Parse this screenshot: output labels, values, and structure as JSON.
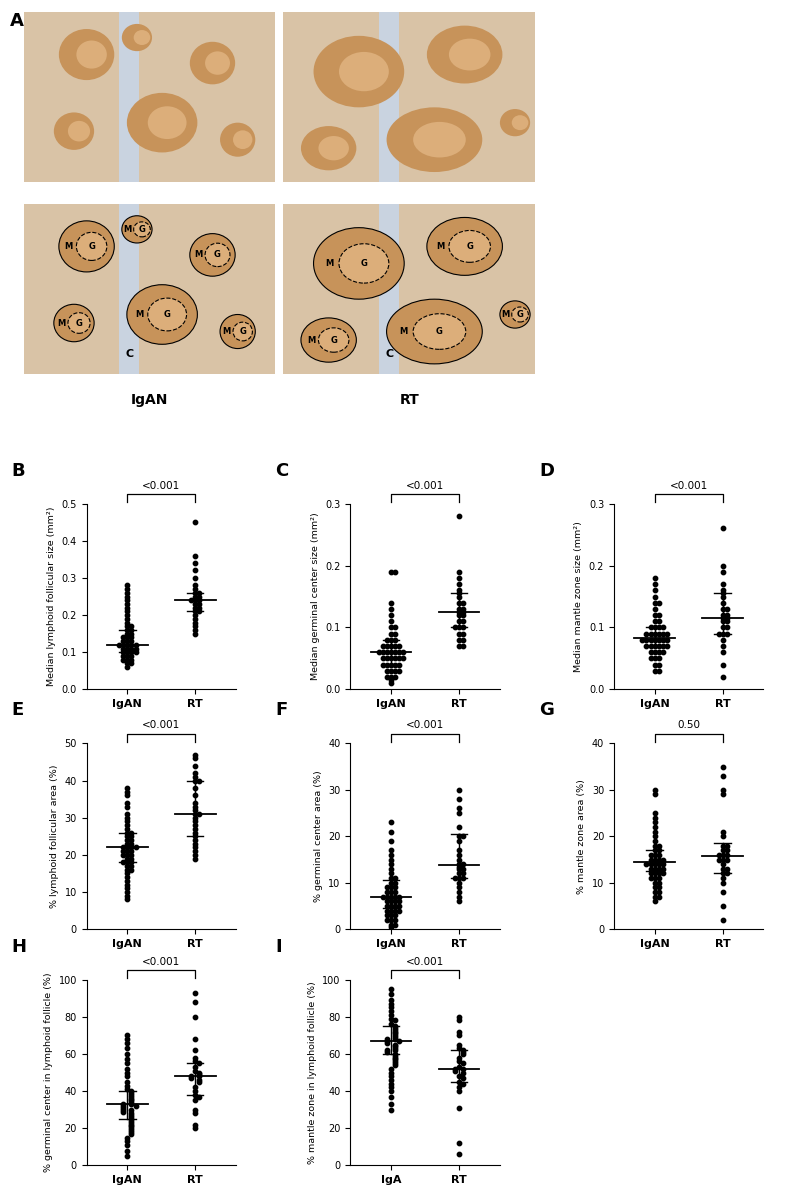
{
  "panel_A": {
    "panel_label": "A",
    "columns": [
      "IgAN",
      "RT"
    ],
    "region_labels": {
      "mantle_zone": "M",
      "germinal_center": "G",
      "capsule": "C"
    }
  },
  "chart_data": [
    {
      "type": "scatter",
      "panel_label": "B",
      "y_label": "Median lymphoid follicular size (mm²)",
      "categories": [
        "IgAN",
        "RT"
      ],
      "annotation": "<0.001",
      "values": [
        [
          0.28,
          0.27,
          0.26,
          0.25,
          0.24,
          0.23,
          0.22,
          0.21,
          0.2,
          0.19,
          0.18,
          0.17,
          0.17,
          0.16,
          0.16,
          0.15,
          0.15,
          0.14,
          0.14,
          0.14,
          0.13,
          0.13,
          0.13,
          0.12,
          0.12,
          0.12,
          0.12,
          0.12,
          0.11,
          0.11,
          0.11,
          0.11,
          0.1,
          0.1,
          0.1,
          0.1,
          0.09,
          0.09,
          0.09,
          0.08,
          0.08,
          0.08,
          0.07,
          0.07,
          0.06
        ],
        [
          0.45,
          0.36,
          0.34,
          0.32,
          0.3,
          0.28,
          0.27,
          0.26,
          0.26,
          0.25,
          0.25,
          0.24,
          0.24,
          0.24,
          0.23,
          0.23,
          0.22,
          0.22,
          0.21,
          0.21,
          0.2,
          0.19,
          0.18,
          0.17,
          0.16,
          0.15
        ]
      ],
      "median": [
        0.12,
        0.24
      ],
      "q1": [
        0.1,
        0.21
      ],
      "q3": [
        0.16,
        0.26
      ],
      "ylim": [
        0.0,
        0.5
      ],
      "yticks": [
        0.0,
        0.1,
        0.2,
        0.3,
        0.4,
        0.5
      ]
    },
    {
      "type": "scatter",
      "panel_label": "C",
      "y_label": "Median germinal center size (mm²)",
      "categories": [
        "IgAN",
        "RT"
      ],
      "annotation": "<0.001",
      "values": [
        [
          0.19,
          0.19,
          0.14,
          0.13,
          0.12,
          0.11,
          0.1,
          0.1,
          0.09,
          0.09,
          0.08,
          0.08,
          0.08,
          0.07,
          0.07,
          0.07,
          0.07,
          0.06,
          0.06,
          0.06,
          0.06,
          0.06,
          0.06,
          0.05,
          0.05,
          0.05,
          0.05,
          0.05,
          0.04,
          0.04,
          0.04,
          0.04,
          0.04,
          0.03,
          0.03,
          0.03,
          0.03,
          0.02,
          0.02,
          0.02,
          0.015,
          0.01,
          0.07,
          0.06,
          0.05
        ],
        [
          0.28,
          0.19,
          0.18,
          0.17,
          0.16,
          0.155,
          0.15,
          0.14,
          0.14,
          0.13,
          0.13,
          0.125,
          0.125,
          0.12,
          0.12,
          0.11,
          0.11,
          0.1,
          0.1,
          0.1,
          0.09,
          0.09,
          0.08,
          0.08,
          0.07,
          0.07
        ]
      ],
      "median": [
        0.06,
        0.125
      ],
      "q1": [
        0.04,
        0.1
      ],
      "q3": [
        0.08,
        0.155
      ],
      "ylim": [
        0.0,
        0.3
      ],
      "yticks": [
        0.0,
        0.1,
        0.2,
        0.3
      ]
    },
    {
      "type": "scatter",
      "panel_label": "D",
      "y_label": "Median mantle zone size (mm²)",
      "categories": [
        "IgAN",
        "RT"
      ],
      "annotation": "<0.001",
      "values": [
        [
          0.18,
          0.17,
          0.16,
          0.15,
          0.14,
          0.14,
          0.13,
          0.12,
          0.12,
          0.11,
          0.11,
          0.1,
          0.1,
          0.1,
          0.1,
          0.09,
          0.09,
          0.09,
          0.09,
          0.09,
          0.08,
          0.08,
          0.08,
          0.08,
          0.08,
          0.08,
          0.08,
          0.07,
          0.07,
          0.07,
          0.07,
          0.07,
          0.07,
          0.06,
          0.06,
          0.06,
          0.06,
          0.05,
          0.05,
          0.05,
          0.04,
          0.04,
          0.03,
          0.03,
          0.09
        ],
        [
          0.26,
          0.2,
          0.19,
          0.17,
          0.16,
          0.155,
          0.15,
          0.14,
          0.13,
          0.13,
          0.12,
          0.12,
          0.115,
          0.115,
          0.11,
          0.11,
          0.1,
          0.1,
          0.09,
          0.09,
          0.09,
          0.08,
          0.07,
          0.06,
          0.04,
          0.02
        ]
      ],
      "median": [
        0.083,
        0.115
      ],
      "q1": [
        0.07,
        0.09
      ],
      "q3": [
        0.1,
        0.155
      ],
      "ylim": [
        0.0,
        0.3
      ],
      "yticks": [
        0.0,
        0.1,
        0.2,
        0.3
      ]
    },
    {
      "type": "scatter",
      "panel_label": "E",
      "y_label": "% lymphoid follicular area (%)",
      "categories": [
        "IgAN",
        "RT"
      ],
      "annotation": "<0.001",
      "values": [
        [
          38,
          37,
          36,
          34,
          33,
          31,
          30,
          29,
          28,
          27,
          26,
          26,
          25,
          25,
          24,
          24,
          23,
          23,
          22,
          22,
          22,
          22,
          21,
          21,
          21,
          20,
          20,
          20,
          19,
          19,
          18,
          18,
          18,
          17,
          17,
          16,
          16,
          15,
          14,
          13,
          12,
          11,
          10,
          9,
          8
        ],
        [
          47,
          46,
          44,
          42,
          41,
          40,
          40,
          38,
          36,
          34,
          33,
          32,
          31,
          31,
          30,
          29,
          28,
          27,
          26,
          25,
          24,
          23,
          22,
          21,
          20,
          19
        ]
      ],
      "median": [
        22,
        31
      ],
      "q1": [
        18,
        25
      ],
      "q3": [
        26,
        40
      ],
      "ylim": [
        0,
        50
      ],
      "yticks": [
        0,
        10,
        20,
        30,
        40,
        50
      ]
    },
    {
      "type": "scatter",
      "panel_label": "F",
      "y_label": "% germinal center area (%)",
      "categories": [
        "IgAN",
        "RT"
      ],
      "annotation": "<0.001",
      "values": [
        [
          23,
          21,
          19,
          17,
          16,
          15,
          14,
          13,
          12,
          11,
          11,
          10,
          10,
          9,
          9,
          9,
          8,
          8,
          8,
          7,
          7,
          7,
          7,
          7,
          6,
          6,
          6,
          6,
          5,
          5,
          5,
          5,
          4,
          4,
          4,
          4,
          3,
          3,
          3,
          2,
          2,
          2,
          1,
          1,
          0.5
        ],
        [
          30,
          28,
          26,
          25,
          22,
          20,
          20,
          19,
          17,
          16,
          15,
          14,
          14,
          13.5,
          13,
          13,
          12,
          12,
          11,
          11,
          11,
          10,
          9,
          8,
          7,
          6
        ]
      ],
      "median": [
        7,
        13.8
      ],
      "q1": [
        4.5,
        11
      ],
      "q3": [
        10.5,
        20.5
      ],
      "ylim": [
        0,
        40
      ],
      "yticks": [
        0,
        10,
        20,
        30,
        40
      ]
    },
    {
      "type": "scatter",
      "panel_label": "G",
      "y_label": "% mantle zone area (%)",
      "categories": [
        "IgAN",
        "RT"
      ],
      "annotation": "0.50",
      "values": [
        [
          30,
          29,
          25,
          24,
          23,
          22,
          21,
          20,
          19,
          18,
          18,
          17,
          17,
          16,
          16,
          16,
          15,
          15,
          15,
          15,
          14,
          14,
          14,
          14,
          14,
          13,
          13,
          13,
          13,
          12,
          12,
          12,
          12,
          11,
          11,
          11,
          10,
          10,
          9,
          9,
          8,
          8,
          7,
          7,
          6
        ],
        [
          35,
          33,
          30,
          29,
          21,
          20,
          18,
          18,
          17,
          17,
          16,
          16,
          16,
          15,
          15,
          15,
          14,
          13,
          13,
          12,
          12,
          11,
          10,
          8,
          5,
          2
        ]
      ],
      "median": [
        14.5,
        15.8
      ],
      "q1": [
        12.5,
        12
      ],
      "q3": [
        17,
        18.5
      ],
      "ylim": [
        0,
        40
      ],
      "yticks": [
        0,
        10,
        20,
        30,
        40
      ]
    },
    {
      "type": "scatter",
      "panel_label": "H",
      "y_label": "% germinal center in lymphoid follicle (%)",
      "categories": [
        "IgAN",
        "RT"
      ],
      "annotation": "<0.001",
      "values": [
        [
          70,
          68,
          66,
          63,
          60,
          57,
          55,
          52,
          50,
          48,
          45,
          43,
          41,
          40,
          39,
          38,
          37,
          36,
          35,
          34,
          33,
          33,
          32,
          32,
          31,
          30,
          30,
          29,
          28,
          27,
          26,
          25,
          24,
          23,
          22,
          21,
          20,
          19,
          18,
          17,
          15,
          13,
          11,
          8,
          5
        ],
        [
          93,
          88,
          80,
          68,
          62,
          58,
          56,
          55,
          53,
          51,
          50,
          49,
          48,
          48,
          47,
          46,
          45,
          42,
          40,
          38,
          37,
          35,
          30,
          28,
          22,
          20
        ]
      ],
      "median": [
        33,
        48
      ],
      "q1": [
        25,
        38
      ],
      "q3": [
        40,
        55
      ],
      "ylim": [
        0,
        100
      ],
      "yticks": [
        0,
        20,
        40,
        60,
        80,
        100
      ]
    },
    {
      "type": "scatter",
      "panel_label": "I",
      "y_label": "% mantle zone in lymphoid follicle (%)",
      "categories": [
        "IgA",
        "RT"
      ],
      "annotation": "<0.001",
      "values": [
        [
          95,
          92,
          89,
          87,
          85,
          83,
          81,
          79,
          78,
          76,
          75,
          74,
          73,
          72,
          71,
          70,
          69,
          68,
          68,
          67,
          67,
          66,
          65,
          64,
          63,
          62,
          62,
          61,
          60,
          59,
          58,
          57,
          56,
          55,
          54,
          52,
          50,
          48,
          46,
          44,
          42,
          40,
          37,
          33,
          30
        ],
        [
          80,
          78,
          72,
          70,
          65,
          63,
          62,
          61,
          60,
          58,
          56,
          55,
          53,
          52,
          52,
          51,
          50,
          48,
          47,
          45,
          44,
          42,
          40,
          31,
          12,
          6
        ]
      ],
      "median": [
        67,
        52
      ],
      "q1": [
        60,
        45
      ],
      "q3": [
        75,
        62
      ],
      "ylim": [
        0,
        100
      ],
      "yticks": [
        0,
        20,
        40,
        60,
        80,
        100
      ]
    }
  ]
}
